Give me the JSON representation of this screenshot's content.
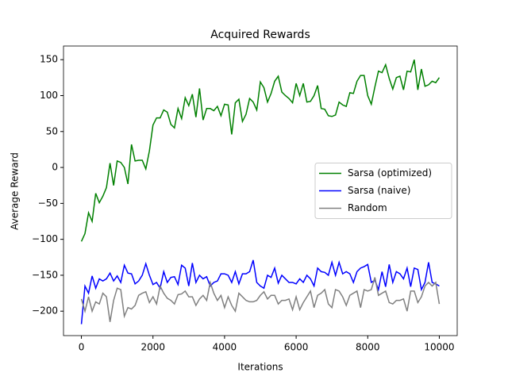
{
  "chart_data": {
    "type": "line",
    "title": "Acquired Rewards",
    "xlabel": "Iterations",
    "ylabel": "Average Reward",
    "x": [
      0,
      100,
      200,
      300,
      400,
      500,
      600,
      700,
      800,
      900,
      1000,
      1100,
      1200,
      1300,
      1400,
      1500,
      1600,
      1700,
      1800,
      1900,
      2000,
      2100,
      2200,
      2300,
      2400,
      2500,
      2600,
      2700,
      2800,
      2900,
      3000,
      3100,
      3200,
      3300,
      3400,
      3500,
      3600,
      3700,
      3800,
      3900,
      4000,
      4100,
      4200,
      4300,
      4400,
      4500,
      4600,
      4700,
      4800,
      4900,
      5000,
      5100,
      5200,
      5300,
      5400,
      5500,
      5600,
      5700,
      5800,
      5900,
      6000,
      6100,
      6200,
      6300,
      6400,
      6500,
      6600,
      6700,
      6800,
      6900,
      7000,
      7100,
      7200,
      7300,
      7400,
      7500,
      7600,
      7700,
      7800,
      7900,
      8000,
      8100,
      8200,
      8300,
      8400,
      8500,
      8600,
      8700,
      8800,
      8900,
      9000,
      9100,
      9200,
      9300,
      9400,
      9500,
      9600,
      9700,
      9800,
      9900,
      10000
    ],
    "series": [
      {
        "name": "Sarsa (optimized)",
        "color": "#008000",
        "values": [
          -103,
          -92,
          -63,
          -75,
          -36,
          -49,
          -40,
          -28,
          6,
          -25,
          9,
          7,
          0,
          -23,
          32,
          9,
          10,
          10,
          -2,
          23,
          59,
          69,
          69,
          80,
          77,
          60,
          55,
          82,
          68,
          97,
          86,
          102,
          70,
          110,
          66,
          82,
          82,
          79,
          85,
          72,
          88,
          87,
          46,
          90,
          95,
          64,
          74,
          96,
          91,
          80,
          119,
          111,
          91,
          103,
          120,
          127,
          105,
          100,
          96,
          90,
          117,
          100,
          117,
          91,
          92,
          100,
          114,
          82,
          81,
          72,
          71,
          73,
          91,
          87,
          85,
          104,
          103,
          120,
          128,
          128,
          100,
          88,
          112,
          134,
          132,
          143,
          124,
          109,
          125,
          127,
          108,
          134,
          133,
          150,
          108,
          137,
          113,
          115,
          120,
          118,
          125
        ]
      },
      {
        "name": "Sarsa (naive)",
        "color": "#0000ff",
        "values": [
          -218,
          -165,
          -175,
          -151,
          -168,
          -155,
          -158,
          -155,
          -147,
          -158,
          -151,
          -160,
          -136,
          -147,
          -148,
          -162,
          -158,
          -150,
          -134,
          -150,
          -163,
          -160,
          -168,
          -145,
          -160,
          -153,
          -152,
          -163,
          -136,
          -140,
          -165,
          -133,
          -160,
          -150,
          -155,
          -152,
          -165,
          -160,
          -158,
          -148,
          -148,
          -150,
          -160,
          -145,
          -162,
          -148,
          -148,
          -145,
          -129,
          -160,
          -165,
          -168,
          -150,
          -153,
          -140,
          -161,
          -150,
          -155,
          -160,
          -160,
          -162,
          -155,
          -160,
          -150,
          -155,
          -165,
          -140,
          -145,
          -146,
          -150,
          -132,
          -150,
          -132,
          -148,
          -145,
          -148,
          -160,
          -145,
          -140,
          -138,
          -135,
          -160,
          -157,
          -170,
          -145,
          -166,
          -135,
          -160,
          -145,
          -148,
          -155,
          -140,
          -166,
          -140,
          -142,
          -170,
          -160,
          -132,
          -160,
          -162,
          -165
        ]
      },
      {
        "name": "Random",
        "color": "#808080",
        "values": [
          -183,
          -200,
          -180,
          -200,
          -187,
          -190,
          -175,
          -180,
          -215,
          -185,
          -168,
          -170,
          -207,
          -195,
          -197,
          -192,
          -178,
          -175,
          -173,
          -188,
          -180,
          -190,
          -165,
          -175,
          -182,
          -185,
          -190,
          -177,
          -176,
          -172,
          -180,
          -180,
          -192,
          -183,
          -178,
          -185,
          -160,
          -175,
          -185,
          -178,
          -195,
          -180,
          -192,
          -200,
          -175,
          -180,
          -185,
          -187,
          -187,
          -185,
          -178,
          -173,
          -183,
          -178,
          -178,
          -190,
          -185,
          -185,
          -183,
          -198,
          -180,
          -198,
          -188,
          -180,
          -172,
          -195,
          -178,
          -175,
          -170,
          -190,
          -195,
          -170,
          -172,
          -180,
          -192,
          -178,
          -175,
          -172,
          -195,
          -170,
          -172,
          -170,
          -153,
          -178,
          -175,
          -172,
          -188,
          -190,
          -185,
          -185,
          -183,
          -200,
          -172,
          -172,
          -188,
          -180,
          -165,
          -160,
          -165,
          -160,
          -190
        ]
      }
    ],
    "xlim": [
      -500,
      10500
    ],
    "ylim": [
      -234,
      169
    ],
    "xticks": [
      0,
      2000,
      4000,
      6000,
      8000,
      10000
    ],
    "yticks": [
      {
        "value": -200,
        "label": "−200"
      },
      {
        "value": -150,
        "label": "−150"
      },
      {
        "value": -100,
        "label": "−100"
      },
      {
        "value": -50,
        "label": "−50"
      },
      0,
      50,
      100,
      150
    ],
    "legend": "center right"
  }
}
